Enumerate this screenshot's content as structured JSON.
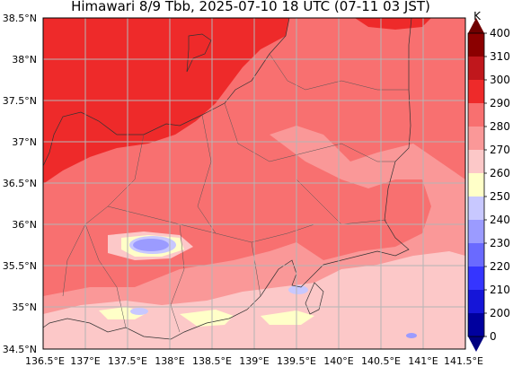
{
  "title": "Himawari 8/9 Tbb, 2025-07-10 18 UTC (07-11 03 JST)",
  "map": {
    "lon_range": [
      136.5,
      141.5
    ],
    "lat_range": [
      34.5,
      38.5
    ],
    "lon_ticks": [
      "136.5°E",
      "137°E",
      "137.5°E",
      "138°E",
      "138.5°E",
      "139°E",
      "139.5°E",
      "140°E",
      "140.5°E",
      "141°E",
      "141.5°E"
    ],
    "lat_ticks": [
      "38.5°N",
      "38°N",
      "37.5°N",
      "37°N",
      "36.5°N",
      "36°N",
      "35.5°N",
      "35°N",
      "34.5°N"
    ],
    "gridlines": true
  },
  "colorbar": {
    "unit": "K",
    "levels": [
      "400",
      "310",
      "300",
      "290",
      "280",
      "270",
      "260",
      "250",
      "240",
      "230",
      "220",
      "210",
      "200",
      "0"
    ],
    "colors": [
      "#8b0000",
      "#c0171c",
      "#ee2a2a",
      "#f87070",
      "#fa9898",
      "#fcc8c8",
      "#ffffc8",
      "#c8c8ff",
      "#9b9bff",
      "#6a6aff",
      "#3535ff",
      "#1515d8",
      "#00009e"
    ],
    "extend_max_color": "#6f0000",
    "extend_min_color": "#000080"
  }
}
